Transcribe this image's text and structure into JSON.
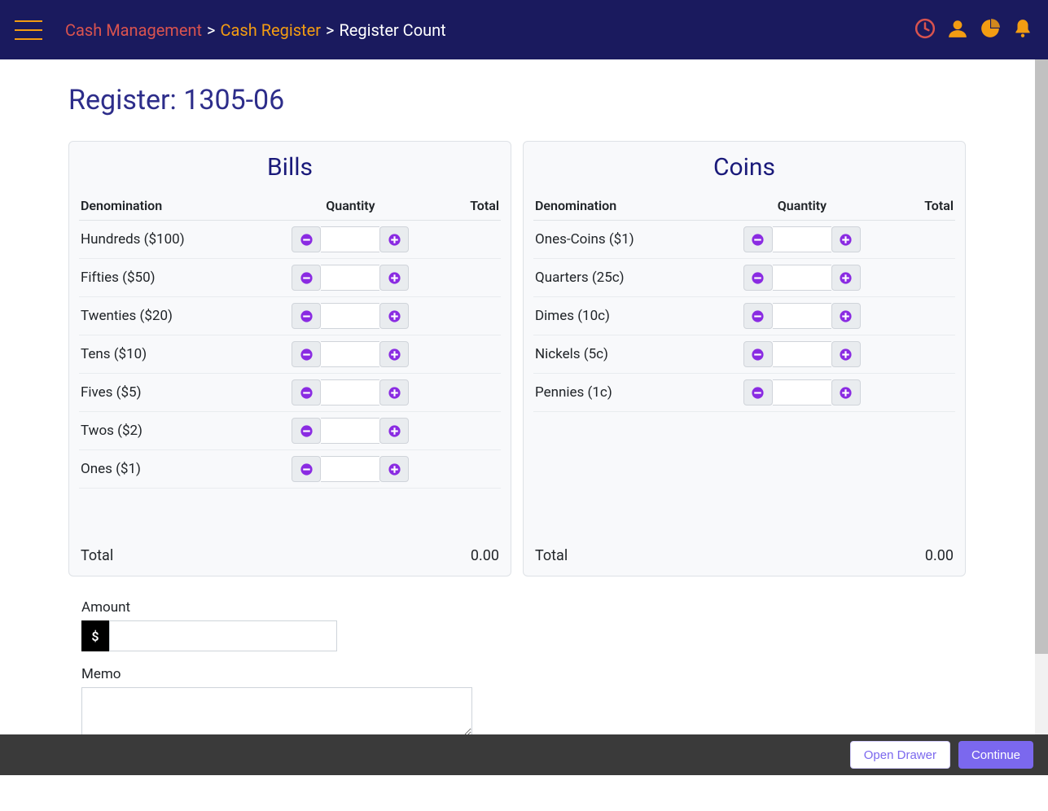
{
  "header": {
    "breadcrumb": {
      "level1": "Cash Management",
      "level2": "Cash Register",
      "current": "Register Count",
      "sep": ">"
    }
  },
  "colors": {
    "topbar_bg": "#1a1a5e",
    "accent_orange": "#f39c12",
    "accent_red": "#d9534f",
    "panel_title": "#1a1a7a",
    "stepper_purple": "#8a2be2",
    "btn_primary": "#7b68ee",
    "page_title": "#2d2d8a"
  },
  "page": {
    "title": "Register: 1305-06"
  },
  "bills": {
    "title": "Bills",
    "columns": {
      "denom": "Denomination",
      "qty": "Quantity",
      "total": "Total"
    },
    "rows": [
      {
        "label": "Hundreds ($100)",
        "qty": "",
        "total": ""
      },
      {
        "label": "Fifties ($50)",
        "qty": "",
        "total": ""
      },
      {
        "label": "Twenties ($20)",
        "qty": "",
        "total": ""
      },
      {
        "label": "Tens ($10)",
        "qty": "",
        "total": ""
      },
      {
        "label": "Fives ($5)",
        "qty": "",
        "total": ""
      },
      {
        "label": "Twos ($2)",
        "qty": "",
        "total": ""
      },
      {
        "label": "Ones ($1)",
        "qty": "",
        "total": ""
      }
    ],
    "footer": {
      "label": "Total",
      "value": "0.00"
    }
  },
  "coins": {
    "title": "Coins",
    "columns": {
      "denom": "Denomination",
      "qty": "Quantity",
      "total": "Total"
    },
    "rows": [
      {
        "label": "Ones-Coins ($1)",
        "qty": "",
        "total": ""
      },
      {
        "label": "Quarters (25c)",
        "qty": "",
        "total": ""
      },
      {
        "label": "Dimes (10c)",
        "qty": "",
        "total": ""
      },
      {
        "label": "Nickels (5c)",
        "qty": "",
        "total": ""
      },
      {
        "label": "Pennies (1c)",
        "qty": "",
        "total": ""
      }
    ],
    "footer": {
      "label": "Total",
      "value": "0.00"
    }
  },
  "form": {
    "amount": {
      "label": "Amount",
      "prefix": "$",
      "value": ""
    },
    "memo": {
      "label": "Memo",
      "value": ""
    }
  },
  "footer_buttons": {
    "open_drawer": "Open Drawer",
    "continue": "Continue"
  }
}
